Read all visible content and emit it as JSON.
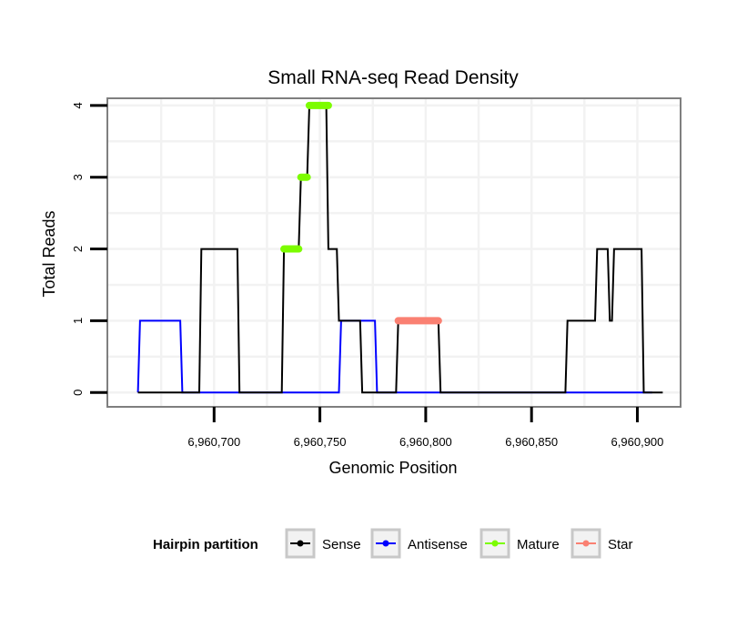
{
  "chart_data": {
    "type": "line",
    "title": "Small RNA-seq Read Density",
    "xlabel": "Genomic Position",
    "ylabel": "Total Reads",
    "xlim": [
      6960650,
      6960920
    ],
    "ylim": [
      -0.2,
      4.1
    ],
    "x_ticks": [
      6960700,
      6960750,
      6960800,
      6960850,
      6960900
    ],
    "x_tick_labels": [
      "6,960,700",
      "6,960,750",
      "6,960,800",
      "6,960,850",
      "6,960,900"
    ],
    "y_ticks": [
      0,
      1,
      2,
      3,
      4
    ],
    "y_tick_labels": [
      "0",
      "1",
      "2",
      "3",
      "4"
    ],
    "grid": true,
    "legend": {
      "title": "Hairpin partition",
      "position": "bottom",
      "entries": [
        "Sense",
        "Antisense",
        "Mature",
        "Star"
      ]
    },
    "series": [
      {
        "name": "Sense",
        "color": "#000000",
        "points": [
          [
            6960664,
            0
          ],
          [
            6960693,
            0
          ],
          [
            6960694,
            2
          ],
          [
            6960711,
            2
          ],
          [
            6960712,
            0
          ],
          [
            6960732,
            0
          ],
          [
            6960733,
            2
          ],
          [
            6960740,
            2
          ],
          [
            6960741,
            3
          ],
          [
            6960744,
            3
          ],
          [
            6960745,
            4
          ],
          [
            6960753,
            4
          ],
          [
            6960754,
            2
          ],
          [
            6960758,
            2
          ],
          [
            6960759,
            1
          ],
          [
            6960769,
            1
          ],
          [
            6960770,
            0
          ],
          [
            6960786,
            0
          ],
          [
            6960787,
            1
          ],
          [
            6960806,
            1
          ],
          [
            6960807,
            0
          ],
          [
            6960866,
            0
          ],
          [
            6960867,
            1
          ],
          [
            6960880,
            1
          ],
          [
            6960881,
            2
          ],
          [
            6960886,
            2
          ],
          [
            6960887,
            1
          ],
          [
            6960888,
            1
          ],
          [
            6960889,
            2
          ],
          [
            6960902,
            2
          ],
          [
            6960903,
            0
          ],
          [
            6960912,
            0
          ]
        ]
      },
      {
        "name": "Antisense",
        "color": "#0000ff",
        "points": [
          [
            6960664,
            0
          ],
          [
            6960665,
            1
          ],
          [
            6960684,
            1
          ],
          [
            6960685,
            0
          ],
          [
            6960759,
            0
          ],
          [
            6960760,
            1
          ],
          [
            6960776,
            1
          ],
          [
            6960777,
            0
          ],
          [
            6960806,
            0
          ],
          [
            6960907,
            0
          ]
        ]
      }
    ],
    "segments": [
      {
        "name": "Mature",
        "color": "#7cfc00",
        "x_start": 6960733,
        "x_end": 6960740,
        "y": 2
      },
      {
        "name": "Mature",
        "color": "#7cfc00",
        "x_start": 6960741,
        "x_end": 6960744,
        "y": 3
      },
      {
        "name": "Mature",
        "color": "#7cfc00",
        "x_start": 6960745,
        "x_end": 6960754,
        "y": 4
      },
      {
        "name": "Star",
        "color": "#fa8072",
        "x_start": 6960787,
        "x_end": 6960806,
        "y": 1
      }
    ]
  }
}
